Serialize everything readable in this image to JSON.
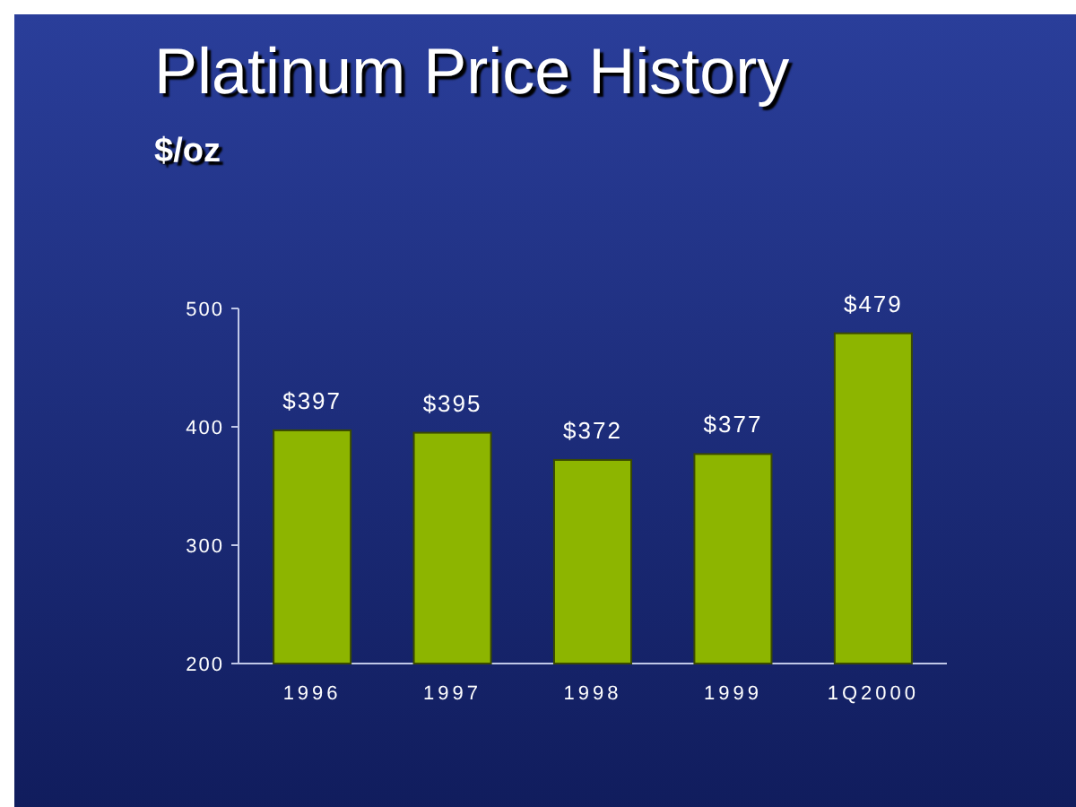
{
  "chart_data": {
    "type": "bar",
    "title": "Platinum Price History",
    "subtitle": "$/oz",
    "categories": [
      "1996",
      "1997",
      "1998",
      "1999",
      "1Q2000"
    ],
    "values": [
      397,
      395,
      372,
      377,
      479
    ],
    "value_labels": [
      "$397",
      "$395",
      "$372",
      "$377",
      "$479"
    ],
    "color": "#8db500",
    "ylim": [
      200,
      500
    ],
    "yticks": [
      200,
      300,
      400,
      500
    ],
    "grid": false
  }
}
